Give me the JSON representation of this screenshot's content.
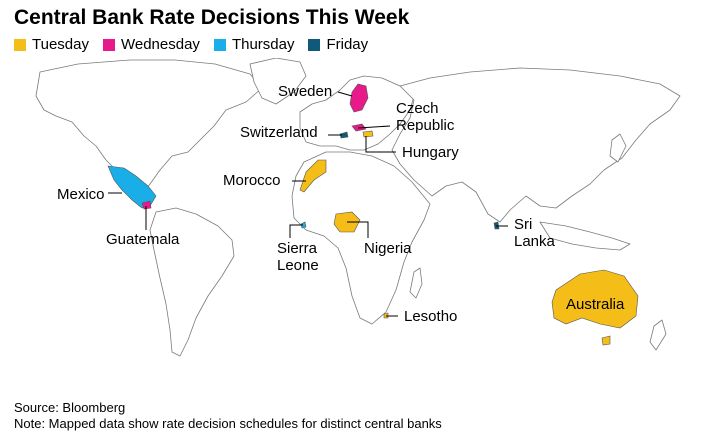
{
  "title": "Central Bank Rate Decisions This Week",
  "legend": [
    {
      "label": "Tuesday",
      "color": "#f5bd18"
    },
    {
      "label": "Wednesday",
      "color": "#e8198b"
    },
    {
      "label": "Thursday",
      "color": "#19aee8"
    },
    {
      "label": "Friday",
      "color": "#0f5a7a"
    }
  ],
  "countries": {
    "sweden": {
      "line1": "Sweden",
      "day": "Wednesday"
    },
    "czech": {
      "line1": "Czech",
      "line2": "Republic",
      "day": "Wednesday"
    },
    "switzerland": {
      "line1": "Switzerland",
      "day": "Thursday"
    },
    "hungary": {
      "line1": "Hungary",
      "day": "Tuesday"
    },
    "morocco": {
      "line1": "Morocco",
      "day": "Tuesday"
    },
    "mexico": {
      "line1": "Mexico",
      "day": "Thursday"
    },
    "guatemala": {
      "line1": "Guatemala",
      "day": "Wednesday"
    },
    "sierra_leone": {
      "line1": "Sierra",
      "line2": "Leone",
      "day": "Thursday"
    },
    "nigeria": {
      "line1": "Nigeria",
      "day": "Tuesday"
    },
    "sri_lanka": {
      "line1": "Sri",
      "line2": "Lanka",
      "day": "Friday"
    },
    "australia": {
      "line1": "Australia",
      "day": "Tuesday"
    },
    "lesotho": {
      "line1": "Lesotho",
      "day": "Tuesday"
    }
  },
  "footer": {
    "source": "Source: Bloomberg",
    "note": "Note: Mapped data show rate decision schedules for distinct central banks"
  }
}
